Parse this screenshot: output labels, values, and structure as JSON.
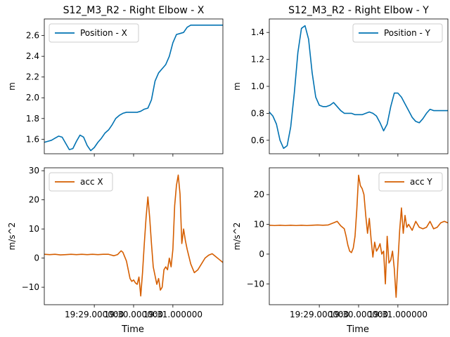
{
  "figure": {
    "xlabel": "Time"
  },
  "chart_data": [
    {
      "type": "line",
      "title": "S12_M3_R2 - Right Elbow - X",
      "ylabel": "m",
      "xlabel": "",
      "xlim": [
        0,
        1
      ],
      "ylim": [
        1.46,
        2.76
      ],
      "yticks": [
        1.6,
        1.8,
        2.0,
        2.2,
        2.4,
        2.6
      ],
      "ytick_labels": [
        "1.6",
        "1.8",
        "2.0",
        "2.2",
        "2.4",
        "2.6"
      ],
      "xticks": [
        0.28,
        0.5,
        0.72
      ],
      "xtick_labels": [],
      "legend": "top-left",
      "grid": false,
      "series": [
        {
          "name": "Position - X",
          "color": "#0072b2",
          "x": [
            0,
            0.02,
            0.04,
            0.06,
            0.08,
            0.1,
            0.12,
            0.14,
            0.16,
            0.18,
            0.2,
            0.22,
            0.24,
            0.26,
            0.28,
            0.3,
            0.32,
            0.34,
            0.36,
            0.38,
            0.4,
            0.42,
            0.44,
            0.46,
            0.48,
            0.5,
            0.52,
            0.54,
            0.56,
            0.58,
            0.6,
            0.62,
            0.64,
            0.66,
            0.68,
            0.7,
            0.72,
            0.74,
            0.76,
            0.78,
            0.8,
            0.82,
            0.84,
            0.86,
            0.88,
            0.9,
            0.92,
            0.94,
            0.96,
            0.98,
            1.0
          ],
          "y": [
            1.57,
            1.58,
            1.59,
            1.61,
            1.63,
            1.62,
            1.56,
            1.5,
            1.51,
            1.58,
            1.64,
            1.62,
            1.54,
            1.49,
            1.52,
            1.57,
            1.61,
            1.66,
            1.69,
            1.74,
            1.8,
            1.83,
            1.85,
            1.86,
            1.86,
            1.86,
            1.86,
            1.87,
            1.89,
            1.9,
            1.98,
            2.16,
            2.24,
            2.28,
            2.32,
            2.4,
            2.53,
            2.61,
            2.62,
            2.63,
            2.68,
            2.7,
            2.7,
            2.7,
            2.7,
            2.7,
            2.7,
            2.7,
            2.7,
            2.7,
            2.7
          ]
        }
      ]
    },
    {
      "type": "line",
      "title": "S12_M3_R2 - Right Elbow - Y",
      "ylabel": "m",
      "xlabel": "",
      "xlim": [
        0,
        1
      ],
      "ylim": [
        0.5,
        1.5
      ],
      "yticks": [
        0.6,
        0.8,
        1.0,
        1.2,
        1.4
      ],
      "ytick_labels": [
        "0.6",
        "0.8",
        "1.0",
        "1.2",
        "1.4"
      ],
      "xticks": [
        0.28,
        0.5,
        0.72
      ],
      "xtick_labels": [],
      "legend": "top-right",
      "grid": false,
      "series": [
        {
          "name": "Position - Y",
          "color": "#0072b2",
          "x": [
            0,
            0.02,
            0.04,
            0.06,
            0.08,
            0.1,
            0.12,
            0.14,
            0.16,
            0.18,
            0.2,
            0.22,
            0.24,
            0.26,
            0.28,
            0.3,
            0.32,
            0.34,
            0.36,
            0.38,
            0.4,
            0.42,
            0.44,
            0.46,
            0.48,
            0.5,
            0.52,
            0.54,
            0.56,
            0.58,
            0.6,
            0.62,
            0.64,
            0.66,
            0.68,
            0.7,
            0.72,
            0.74,
            0.76,
            0.78,
            0.8,
            0.82,
            0.84,
            0.86,
            0.88,
            0.9,
            0.92,
            0.94,
            0.96,
            0.98,
            1.0
          ],
          "y": [
            0.81,
            0.78,
            0.72,
            0.6,
            0.54,
            0.56,
            0.7,
            0.95,
            1.25,
            1.43,
            1.45,
            1.35,
            1.1,
            0.92,
            0.86,
            0.85,
            0.85,
            0.86,
            0.88,
            0.85,
            0.82,
            0.8,
            0.8,
            0.8,
            0.79,
            0.79,
            0.79,
            0.8,
            0.81,
            0.8,
            0.78,
            0.73,
            0.67,
            0.72,
            0.85,
            0.95,
            0.95,
            0.92,
            0.87,
            0.82,
            0.77,
            0.74,
            0.73,
            0.76,
            0.8,
            0.83,
            0.82,
            0.82,
            0.82,
            0.82,
            0.82
          ]
        }
      ]
    },
    {
      "type": "line",
      "title": "",
      "ylabel": "m/s^2",
      "xlabel": "Time",
      "xlim": [
        0,
        1
      ],
      "ylim": [
        -16,
        31
      ],
      "yticks": [
        -10,
        0,
        10,
        20,
        30
      ],
      "ytick_labels": [
        "−10",
        "0",
        "10",
        "20",
        "30"
      ],
      "xticks": [
        0.28,
        0.5,
        0.72
      ],
      "xtick_labels": [
        "19:29.000000",
        "19:30.000000",
        "19:31.000000"
      ],
      "legend": "top-left",
      "grid": false,
      "series": [
        {
          "name": "acc X",
          "color": "#d55e00",
          "x": [
            0,
            0.03,
            0.06,
            0.09,
            0.12,
            0.15,
            0.18,
            0.21,
            0.24,
            0.27,
            0.3,
            0.33,
            0.36,
            0.39,
            0.41,
            0.43,
            0.44,
            0.46,
            0.47,
            0.48,
            0.49,
            0.5,
            0.51,
            0.52,
            0.53,
            0.54,
            0.55,
            0.56,
            0.57,
            0.58,
            0.59,
            0.6,
            0.61,
            0.62,
            0.63,
            0.64,
            0.65,
            0.66,
            0.67,
            0.68,
            0.69,
            0.7,
            0.71,
            0.72,
            0.73,
            0.74,
            0.75,
            0.76,
            0.77,
            0.78,
            0.79,
            0.8,
            0.82,
            0.84,
            0.86,
            0.88,
            0.9,
            0.92,
            0.94,
            0.96,
            0.98,
            1.0
          ],
          "y": [
            1.3,
            1.2,
            1.3,
            1.1,
            1.2,
            1.3,
            1.2,
            1.3,
            1.2,
            1.3,
            1.2,
            1.3,
            1.3,
            0.8,
            1.2,
            2.5,
            2.0,
            -1.0,
            -4.0,
            -7.0,
            -8.0,
            -7.5,
            -8.5,
            -9.0,
            -6.5,
            -13.0,
            -5.0,
            5.0,
            14.0,
            21.0,
            14.0,
            5.0,
            -3.0,
            -6.0,
            -9.0,
            -7.0,
            -11.0,
            -10.0,
            -4.0,
            -3.0,
            -4.0,
            0.0,
            -3.0,
            3.0,
            18.0,
            25.0,
            28.5,
            22.0,
            5.0,
            10.0,
            6.0,
            3.0,
            -2.0,
            -5.0,
            -4.0,
            -2.0,
            0.0,
            1.0,
            1.5,
            0.5,
            -0.5,
            -1.5
          ]
        }
      ]
    },
    {
      "type": "line",
      "title": "",
      "ylabel": "m/s^2",
      "xlabel": "Time",
      "xlim": [
        0,
        1
      ],
      "ylim": [
        -17,
        29
      ],
      "yticks": [
        -10,
        0,
        10,
        20
      ],
      "ytick_labels": [
        "−10",
        "0",
        "10",
        "20"
      ],
      "xticks": [
        0.28,
        0.5,
        0.72
      ],
      "xtick_labels": [
        "19:29.000000",
        "19:30.000000",
        "19:31.000000"
      ],
      "legend": "top-right",
      "grid": false,
      "series": [
        {
          "name": "acc Y",
          "color": "#d55e00",
          "x": [
            0,
            0.03,
            0.06,
            0.09,
            0.12,
            0.15,
            0.18,
            0.21,
            0.24,
            0.27,
            0.3,
            0.33,
            0.36,
            0.38,
            0.4,
            0.42,
            0.43,
            0.44,
            0.45,
            0.46,
            0.47,
            0.48,
            0.49,
            0.5,
            0.51,
            0.52,
            0.53,
            0.54,
            0.55,
            0.56,
            0.57,
            0.58,
            0.59,
            0.6,
            0.61,
            0.62,
            0.63,
            0.64,
            0.65,
            0.66,
            0.67,
            0.68,
            0.69,
            0.7,
            0.71,
            0.72,
            0.73,
            0.74,
            0.75,
            0.76,
            0.77,
            0.78,
            0.8,
            0.82,
            0.84,
            0.86,
            0.88,
            0.9,
            0.92,
            0.94,
            0.96,
            0.98,
            1.0
          ],
          "y": [
            9.7,
            9.6,
            9.7,
            9.6,
            9.7,
            9.6,
            9.7,
            9.6,
            9.7,
            9.8,
            9.7,
            9.8,
            10.5,
            11.0,
            9.5,
            8.5,
            6.0,
            3.0,
            1.0,
            0.5,
            2.0,
            6.0,
            15.0,
            26.5,
            23.0,
            22.0,
            20.0,
            13.0,
            7.0,
            12.0,
            5.0,
            -1.0,
            4.0,
            1.0,
            2.0,
            3.5,
            0.0,
            1.0,
            -10.0,
            6.0,
            -3.0,
            -2.0,
            1.0,
            -5.0,
            -14.5,
            -3.0,
            8.0,
            15.5,
            7.0,
            13.0,
            9.0,
            10.0,
            8.0,
            11.0,
            9.0,
            8.5,
            9.0,
            11.0,
            8.5,
            9.0,
            10.5,
            11.0,
            10.5
          ]
        }
      ]
    }
  ]
}
